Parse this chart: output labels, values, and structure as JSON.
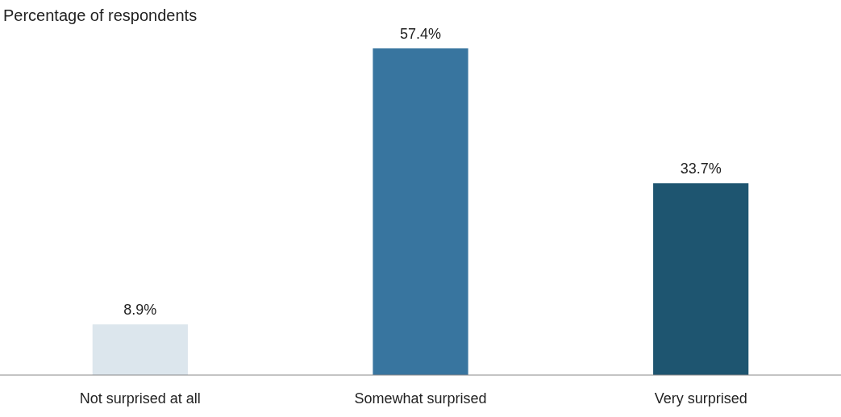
{
  "chart_data": {
    "type": "bar",
    "title": "Percentage of respondents",
    "categories": [
      "Not surprised at all",
      "Somewhat surprised",
      "Very surprised"
    ],
    "values": [
      8.9,
      57.4,
      33.7
    ],
    "colors": [
      "#dce6ed",
      "#38759f",
      "#1e5570"
    ],
    "value_labels": [
      "8.9%",
      "57.4%",
      "33.7%"
    ]
  }
}
